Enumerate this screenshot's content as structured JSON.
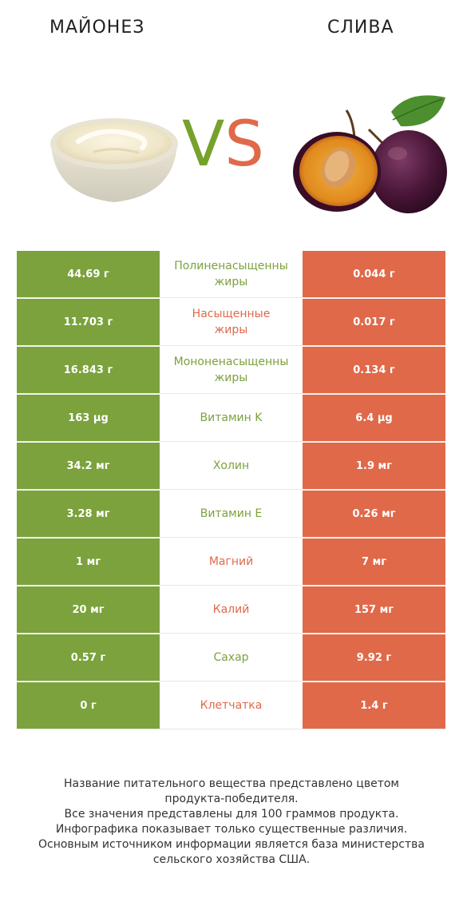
{
  "header": {
    "left_title": "МАЙОНЕЗ",
    "right_title": "СЛИВА",
    "vs_v": "V",
    "vs_s": "S"
  },
  "colors": {
    "winner_left": "#7ba23c",
    "winner_right": "#e0694a"
  },
  "rows": [
    {
      "left": "44.69 г",
      "nutrient_line1": "Полиненасыщенны",
      "nutrient_line2": "жиры",
      "right": "0.044 г",
      "winner": "green"
    },
    {
      "left": "11.703 г",
      "nutrient_line1": "Насыщенные",
      "nutrient_line2": "жиры",
      "right": "0.017 г",
      "winner": "orange"
    },
    {
      "left": "16.843 г",
      "nutrient_line1": "Мононенасыщенны",
      "nutrient_line2": "жиры",
      "right": "0.134 г",
      "winner": "green"
    },
    {
      "left": "163 µg",
      "nutrient_line1": "Витамин K",
      "nutrient_line2": "",
      "right": "6.4 µg",
      "winner": "green"
    },
    {
      "left": "34.2 мг",
      "nutrient_line1": "Холин",
      "nutrient_line2": "",
      "right": "1.9 мг",
      "winner": "green"
    },
    {
      "left": "3.28 мг",
      "nutrient_line1": "Витамин E",
      "nutrient_line2": "",
      "right": "0.26 мг",
      "winner": "green"
    },
    {
      "left": "1 мг",
      "nutrient_line1": "Магний",
      "nutrient_line2": "",
      "right": "7 мг",
      "winner": "orange"
    },
    {
      "left": "20 мг",
      "nutrient_line1": "Калий",
      "nutrient_line2": "",
      "right": "157 мг",
      "winner": "orange"
    },
    {
      "left": "0.57 г",
      "nutrient_line1": "Сахар",
      "nutrient_line2": "",
      "right": "9.92 г",
      "winner": "green"
    },
    {
      "left": "0 г",
      "nutrient_line1": "Клетчатка",
      "nutrient_line2": "",
      "right": "1.4 г",
      "winner": "orange"
    }
  ],
  "footer": {
    "line1": "Название питательного вещества представлено цветом",
    "line2": "продукта-победителя.",
    "line3": "Все значения представлены для 100 граммов продукта.",
    "line4": "Инфографика показывает только существенные различия.",
    "line5": "Основным источником информации является база министерства",
    "line6": "сельского хозяйства США."
  }
}
